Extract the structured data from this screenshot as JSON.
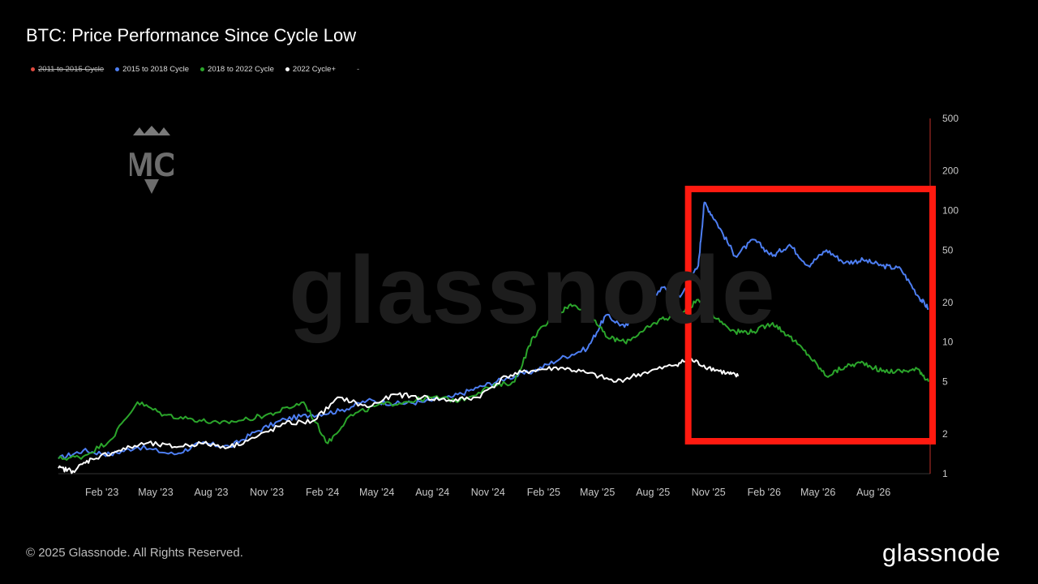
{
  "title": "BTC: Price Performance Since Cycle Low",
  "legend": [
    {
      "label": "2011 to 2015 Cycle",
      "color": "#e04a3f",
      "disabled": true
    },
    {
      "label": "2015 to 2018 Cycle",
      "color": "#4d7ef2",
      "disabled": false
    },
    {
      "label": "2018 to 2022 Cycle",
      "color": "#2ba52b",
      "disabled": false
    },
    {
      "label": "2022 Cycle+",
      "color": "#ffffff",
      "disabled": false
    }
  ],
  "legend_extra": "-",
  "watermark": "glassnode",
  "logo_text": "MC",
  "copyright": "© 2025 Glassnode. All Rights Reserved.",
  "brand": "glassnode",
  "highlight_color": "#ff1a10",
  "chart_data": {
    "type": "line",
    "title": "BTC: Price Performance Since Cycle Low",
    "x_ticks": [
      "Feb '23",
      "May '23",
      "Aug '23",
      "Nov '23",
      "Feb '24",
      "May '24",
      "Aug '24",
      "Nov '24",
      "Feb '25",
      "May '25",
      "Aug '25",
      "Nov '25",
      "Feb '26",
      "May '26",
      "Aug '26"
    ],
    "y_scale": "log",
    "y_ticks": [
      1,
      2,
      5,
      10,
      20,
      50,
      100,
      200,
      500
    ],
    "ylim": [
      1,
      500
    ],
    "grid": false,
    "legend_position": "top-left",
    "series": [
      {
        "name": "2015 to 2018 Cycle",
        "color": "#4d7ef2",
        "x": [
          "2022-11-21",
          "2023-01-01",
          "2023-02-15",
          "2023-04-01",
          "2023-06-01",
          "2023-07-15",
          "2023-09-01",
          "2023-10-15",
          "2023-12-01",
          "2024-01-15",
          "2024-03-01",
          "2024-04-15",
          "2024-06-01",
          "2024-07-15",
          "2024-09-01",
          "2024-10-15",
          "2024-12-01",
          "2025-01-15",
          "2025-03-01",
          "2025-04-15",
          "2025-05-15",
          "2025-06-15",
          "2025-07-15",
          "2025-08-15",
          "2025-09-15",
          "2025-10-15",
          "2025-10-25",
          "2025-11-15",
          "2025-12-15",
          "2026-01-15",
          "2026-02-15",
          "2026-03-15",
          "2026-04-15",
          "2026-05-15",
          "2026-06-15",
          "2026-07-15",
          "2026-08-15",
          "2026-09-15",
          "2026-10-15",
          "2026-10-31"
        ],
        "values": [
          1.3,
          1.5,
          1.4,
          1.6,
          1.4,
          1.7,
          1.6,
          2.1,
          2.6,
          2.8,
          3.0,
          3.6,
          3.4,
          3.5,
          3.8,
          4.5,
          5.3,
          6.0,
          7.5,
          9,
          16,
          13,
          17,
          26,
          22,
          38,
          115,
          80,
          45,
          60,
          45,
          55,
          38,
          50,
          40,
          42,
          38,
          36,
          22,
          18
        ]
      },
      {
        "name": "2018 to 2022 Cycle",
        "color": "#2ba52b",
        "x": [
          "2022-11-21",
          "2023-01-01",
          "2023-02-15",
          "2023-04-01",
          "2023-05-15",
          "2023-07-01",
          "2023-08-15",
          "2023-10-01",
          "2023-11-15",
          "2024-01-01",
          "2024-02-10",
          "2024-03-15",
          "2024-05-01",
          "2024-06-15",
          "2024-08-01",
          "2024-09-15",
          "2024-11-01",
          "2024-12-15",
          "2025-01-15",
          "2025-02-15",
          "2025-03-15",
          "2025-04-15",
          "2025-05-15",
          "2025-06-15",
          "2025-07-15",
          "2025-08-15",
          "2025-09-15",
          "2025-10-15",
          "2025-11-15",
          "2025-12-15",
          "2026-01-15",
          "2026-02-15",
          "2026-03-15",
          "2026-04-15",
          "2026-05-15",
          "2026-06-15",
          "2026-07-15",
          "2026-08-15",
          "2026-09-15",
          "2026-10-15",
          "2026-10-31"
        ],
        "values": [
          1.3,
          1.35,
          1.8,
          3.5,
          2.8,
          2.6,
          2.4,
          2.6,
          2.9,
          3.5,
          1.7,
          2.7,
          3.3,
          3.5,
          3.8,
          3.6,
          4.5,
          5.0,
          11,
          15,
          19,
          18,
          11,
          10,
          12,
          15,
          16,
          21,
          15,
          12,
          12,
          14,
          11,
          8,
          5.5,
          6.5,
          7,
          6,
          6,
          6.2,
          5
        ]
      },
      {
        "name": "2022 Cycle+",
        "color": "#ffffff",
        "x": [
          "2022-11-21",
          "2022-12-15",
          "2023-01-15",
          "2023-03-01",
          "2023-04-15",
          "2023-06-01",
          "2023-07-15",
          "2023-09-01",
          "2023-10-15",
          "2023-12-01",
          "2024-01-15",
          "2024-03-01",
          "2024-04-15",
          "2024-06-01",
          "2024-07-15",
          "2024-09-01",
          "2024-10-15",
          "2024-12-01",
          "2025-01-15",
          "2025-03-01",
          "2025-04-15",
          "2025-06-01",
          "2025-07-15",
          "2025-09-01",
          "2025-10-01",
          "2025-11-01",
          "2025-12-01",
          "2025-12-20"
        ],
        "values": [
          1.1,
          1.05,
          1.3,
          1.5,
          1.7,
          1.6,
          1.7,
          1.6,
          1.9,
          2.4,
          2.5,
          3.8,
          3.2,
          4.0,
          3.8,
          3.6,
          3.8,
          5.5,
          6.1,
          6.4,
          5.8,
          5.0,
          5.8,
          6.6,
          7.4,
          6.4,
          5.8,
          5.5
        ]
      }
    ],
    "highlight_box": {
      "x_from": "2025-10-01",
      "x_to": "2026-10-31"
    }
  }
}
